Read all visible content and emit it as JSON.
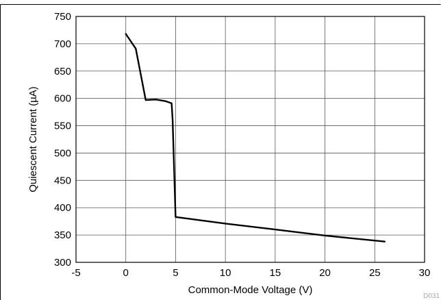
{
  "chart_data": {
    "type": "line",
    "title": "",
    "xlabel": "Common-Mode Voltage (V)",
    "ylabel": "Quiescent Current (µA)",
    "xlim": [
      -5,
      30
    ],
    "ylim": [
      300,
      750
    ],
    "x_ticks": [
      "-5",
      "0",
      "5",
      "10",
      "15",
      "20",
      "25",
      "30"
    ],
    "y_ticks": [
      "300",
      "350",
      "400",
      "450",
      "500",
      "550",
      "600",
      "650",
      "700",
      "750"
    ],
    "grid": true,
    "legend": "none",
    "figure_id": "D031",
    "series": [
      {
        "color": "#000000",
        "x": [
          0,
          1,
          2,
          3,
          4,
          4.6,
          4.7,
          5.0,
          10,
          15,
          20,
          26
        ],
        "y": [
          718,
          691,
          597,
          598,
          595,
          591,
          560,
          383,
          371,
          360,
          349,
          338
        ]
      }
    ]
  }
}
